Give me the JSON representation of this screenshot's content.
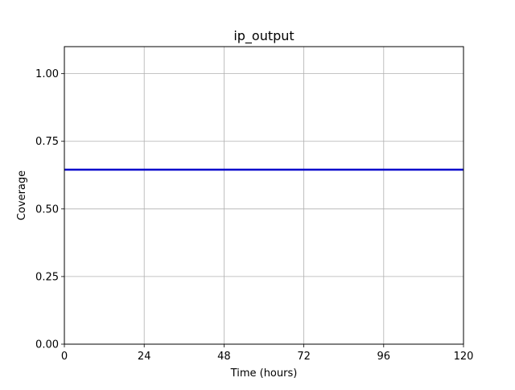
{
  "chart_data": {
    "type": "line",
    "title": "ip_output",
    "xlabel": "Time (hours)",
    "ylabel": "Coverage",
    "xlim": [
      0,
      120
    ],
    "ylim": [
      0,
      1.1
    ],
    "xticks": [
      0,
      24,
      48,
      72,
      96,
      120
    ],
    "xtick_labels": [
      "0",
      "24",
      "48",
      "72",
      "96",
      "120"
    ],
    "yticks": [
      0,
      0.25,
      0.5,
      0.75,
      1.0
    ],
    "ytick_labels": [
      "0.00",
      "0.25",
      "0.50",
      "0.75",
      "1.00"
    ],
    "grid": true,
    "series": [
      {
        "color": "#0000cc",
        "x": [
          0,
          120
        ],
        "y": [
          0.645,
          0.645
        ]
      }
    ]
  }
}
